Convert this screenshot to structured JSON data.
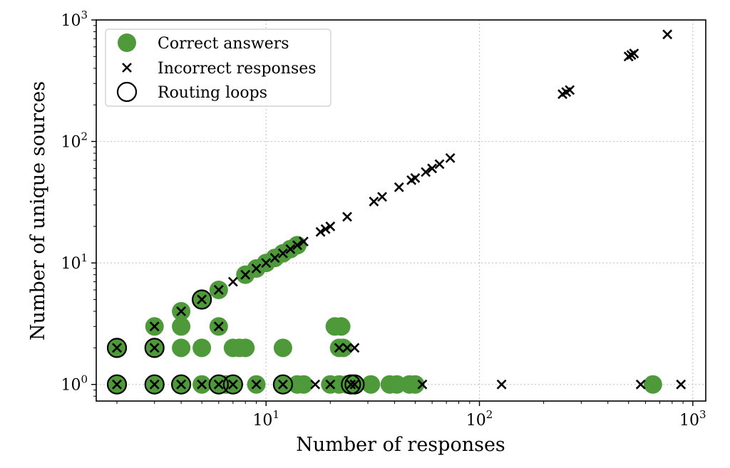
{
  "chart_data": {
    "type": "scatter",
    "xlabel": "Number of responses",
    "ylabel": "Number of unique sources",
    "xscale": "log",
    "yscale": "log",
    "xlim": [
      1.6,
      1150
    ],
    "ylim": [
      0.73,
      1000
    ],
    "grid": true,
    "legend_position": "top-left",
    "x_ticks": [
      {
        "base": "10",
        "exp": "1",
        "value": 10
      },
      {
        "base": "10",
        "exp": "2",
        "value": 100
      },
      {
        "base": "10",
        "exp": "3",
        "value": 1000
      }
    ],
    "y_ticks": [
      {
        "base": "10",
        "exp": "0",
        "value": 1
      },
      {
        "base": "10",
        "exp": "1",
        "value": 10
      },
      {
        "base": "10",
        "exp": "2",
        "value": 100
      },
      {
        "base": "10",
        "exp": "3",
        "value": 1000
      }
    ],
    "legend": [
      {
        "label": "Correct answers",
        "marker": "filled-circle"
      },
      {
        "label": "Incorrect responses",
        "marker": "x"
      },
      {
        "label": "Routing loops",
        "marker": "open-circle"
      }
    ],
    "colors": {
      "correct": "#4e9a3a",
      "incorrect": "#000000",
      "loop": "#000000"
    },
    "series": [
      {
        "name": "Correct answers",
        "marker": "filled-circle",
        "points": [
          [
            2,
            1
          ],
          [
            3,
            1
          ],
          [
            4,
            1
          ],
          [
            5,
            1
          ],
          [
            6,
            1
          ],
          [
            6.5,
            1
          ],
          [
            7,
            1
          ],
          [
            9,
            1
          ],
          [
            12,
            1
          ],
          [
            14,
            1
          ],
          [
            15,
            1
          ],
          [
            20,
            1
          ],
          [
            22,
            1
          ],
          [
            24,
            1
          ],
          [
            26,
            1
          ],
          [
            31,
            1
          ],
          [
            38,
            1
          ],
          [
            41,
            1
          ],
          [
            47,
            1
          ],
          [
            50,
            1
          ],
          [
            650,
            1
          ],
          [
            2,
            2
          ],
          [
            3,
            2
          ],
          [
            4,
            2
          ],
          [
            5,
            2
          ],
          [
            7,
            2
          ],
          [
            7.5,
            2
          ],
          [
            8,
            2
          ],
          [
            12,
            2
          ],
          [
            22,
            2
          ],
          [
            23,
            2
          ],
          [
            3,
            3
          ],
          [
            4,
            3
          ],
          [
            6,
            3
          ],
          [
            21,
            3
          ],
          [
            22.5,
            3
          ],
          [
            4,
            4
          ],
          [
            5,
            5
          ],
          [
            6,
            6
          ],
          [
            8,
            8
          ],
          [
            9,
            9
          ],
          [
            10,
            10
          ],
          [
            11,
            11
          ],
          [
            12,
            12
          ],
          [
            13,
            13
          ],
          [
            14,
            14
          ]
        ]
      },
      {
        "name": "Incorrect responses",
        "marker": "x",
        "points": [
          [
            2,
            1
          ],
          [
            3,
            1
          ],
          [
            4,
            1
          ],
          [
            5,
            1
          ],
          [
            6,
            1
          ],
          [
            7,
            1
          ],
          [
            9,
            1
          ],
          [
            12,
            1
          ],
          [
            17,
            1
          ],
          [
            20,
            1
          ],
          [
            25,
            1
          ],
          [
            26,
            1
          ],
          [
            54,
            1
          ],
          [
            127,
            1
          ],
          [
            570,
            1
          ],
          [
            880,
            1
          ],
          [
            2,
            2
          ],
          [
            3,
            2
          ],
          [
            22,
            2
          ],
          [
            24,
            2
          ],
          [
            26,
            2
          ],
          [
            3,
            3
          ],
          [
            6,
            3
          ],
          [
            4,
            4
          ],
          [
            5,
            5
          ],
          [
            6,
            6
          ],
          [
            7,
            7
          ],
          [
            8,
            8
          ],
          [
            9,
            9
          ],
          [
            10,
            10
          ],
          [
            11,
            11
          ],
          [
            12,
            12
          ],
          [
            13,
            13
          ],
          [
            14,
            14
          ],
          [
            15,
            15
          ],
          [
            18,
            18
          ],
          [
            19,
            19
          ],
          [
            20,
            20
          ],
          [
            24,
            24
          ],
          [
            32,
            32
          ],
          [
            35,
            35
          ],
          [
            42,
            42
          ],
          [
            48,
            48
          ],
          [
            50,
            50
          ],
          [
            56,
            56
          ],
          [
            60,
            60
          ],
          [
            65,
            65
          ],
          [
            73,
            73
          ],
          [
            245,
            245
          ],
          [
            255,
            255
          ],
          [
            265,
            265
          ],
          [
            500,
            500
          ],
          [
            515,
            515
          ],
          [
            530,
            530
          ],
          [
            760,
            760
          ]
        ]
      },
      {
        "name": "Routing loops",
        "marker": "open-circle",
        "points": [
          [
            2,
            1
          ],
          [
            3,
            1
          ],
          [
            4,
            1
          ],
          [
            6,
            1
          ],
          [
            7,
            1
          ],
          [
            12,
            1
          ],
          [
            25,
            1
          ],
          [
            26,
            1
          ],
          [
            2,
            2
          ],
          [
            3,
            2
          ],
          [
            5,
            5
          ]
        ]
      }
    ]
  }
}
